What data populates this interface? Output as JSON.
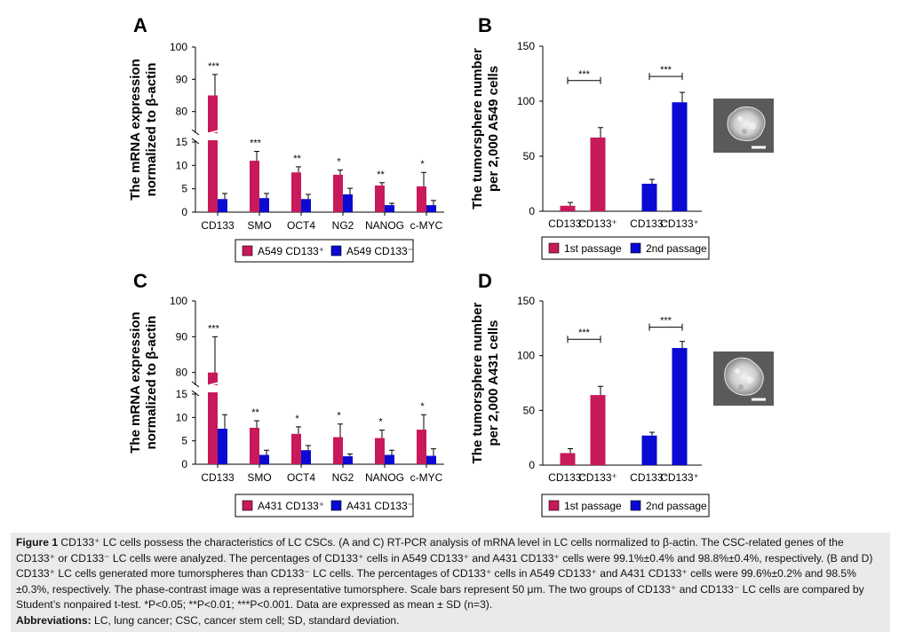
{
  "colors": {
    "crimson": "#c8195a",
    "blue": "#0a0ad2",
    "axis": "#000000",
    "caption_bg": "#eaeaea"
  },
  "panel_labels": [
    "A",
    "B",
    "C",
    "D"
  ],
  "chart_data": [
    {
      "id": "A",
      "type": "bar",
      "ylabel_lines": [
        "The mRNA expression",
        "normalized to β-actin"
      ],
      "categories": [
        "CD133",
        "SMO",
        "OCT4",
        "NG2",
        "NANOG",
        "c-MYC"
      ],
      "series": [
        {
          "name": "A549 CD133⁺",
          "color": "#c8195a",
          "values": [
            85,
            11,
            8.5,
            8,
            5.7,
            5.5
          ],
          "errors": [
            6.5,
            2,
            1.2,
            1,
            0.6,
            3
          ]
        },
        {
          "name": "A549 CD133⁻",
          "color": "#0a0ad2",
          "values": [
            2.8,
            3,
            2.8,
            3.8,
            1.5,
            1.5
          ],
          "errors": [
            1.2,
            1,
            1,
            1.3,
            0.4,
            1
          ]
        }
      ],
      "significance": [
        "***",
        "***",
        "**",
        "*",
        "**",
        "*"
      ],
      "y_broken": true,
      "y_lower_range": [
        0,
        15
      ],
      "y_lower_ticks": [
        0,
        5,
        10,
        15
      ],
      "y_upper_range": [
        70,
        100
      ],
      "y_upper_ticks": [
        80,
        90,
        100
      ]
    },
    {
      "id": "B",
      "type": "bar",
      "ylabel_lines": [
        "The tumorsphere number",
        "per 2,000 A549 cells"
      ],
      "x_tick_labels": [
        "CD133⁻",
        "CD133⁺",
        "CD133⁻",
        "CD133⁺"
      ],
      "ylim": [
        0,
        150
      ],
      "yticks": [
        0,
        50,
        100,
        150
      ],
      "series": [
        {
          "name": "1st passage",
          "color": "#c8195a",
          "values": [
            5,
            67
          ],
          "errors": [
            3,
            9
          ]
        },
        {
          "name": "2nd passage",
          "color": "#0a0ad2",
          "values": [
            25,
            99
          ],
          "errors": [
            4,
            9
          ]
        }
      ],
      "significance": [
        "***",
        "***"
      ]
    },
    {
      "id": "C",
      "type": "bar",
      "ylabel_lines": [
        "The mRNA expression",
        "normalized to β-actin"
      ],
      "categories": [
        "CD133",
        "SMO",
        "OCT4",
        "NG2",
        "NANOG",
        "c-MYC"
      ],
      "series": [
        {
          "name": "A431 CD133⁺",
          "color": "#c8195a",
          "values": [
            80,
            7.8,
            6.5,
            5.8,
            5.6,
            7.4
          ],
          "errors": [
            10,
            1.5,
            1.5,
            2.8,
            1.7,
            3.2
          ]
        },
        {
          "name": "A431 CD133⁻",
          "color": "#0a0ad2",
          "values": [
            7.6,
            2,
            3,
            1.7,
            2,
            1.8
          ],
          "errors": [
            3,
            1,
            1,
            0.5,
            1,
            1.5
          ]
        }
      ],
      "significance": [
        "***",
        "**",
        "*",
        "*",
        "*",
        "*"
      ],
      "y_broken": true,
      "y_lower_range": [
        0,
        15
      ],
      "y_lower_ticks": [
        0,
        5,
        10,
        15
      ],
      "y_upper_range": [
        70,
        100
      ],
      "y_upper_ticks": [
        80,
        90,
        100
      ]
    },
    {
      "id": "D",
      "type": "bar",
      "ylabel_lines": [
        "The tumorsphere number",
        "per 2,000 A431 cells"
      ],
      "x_tick_labels": [
        "CD133⁻",
        "CD133⁺",
        "CD133⁻",
        "CD133⁺"
      ],
      "ylim": [
        0,
        150
      ],
      "yticks": [
        0,
        50,
        100,
        150
      ],
      "series": [
        {
          "name": "1st passage",
          "color": "#c8195a",
          "values": [
            11,
            64
          ],
          "errors": [
            4,
            8
          ]
        },
        {
          "name": "2nd passage",
          "color": "#0a0ad2",
          "values": [
            27,
            107
          ],
          "errors": [
            3,
            6
          ]
        }
      ],
      "significance": [
        "***",
        "***"
      ]
    }
  ],
  "caption": {
    "figure_label": "Figure 1",
    "text": " CD133⁺ LC cells possess the characteristics of LC CSCs. (A and C) RT-PCR analysis of mRNA level in LC cells normalized to β-actin. The CSC-related genes of the CD133⁺ or CD133⁻ LC cells were analyzed. The percentages of CD133⁺ cells in A549 CD133⁺ and A431 CD133⁺ cells were 99.1%±0.4% and 98.8%±0.4%, respectively. (B and D) CD133⁺ LC cells generated more tumorspheres than CD133⁻ LC cells. The percentages of CD133⁺ cells in A549 CD133⁺ and A431 CD133⁺ cells were 99.6%±0.2% and 98.5%±0.3%, respectively. The phase-contrast image was a representative tumorsphere. Scale bars represent 50 μm. The two groups of CD133⁺ and CD133⁻ LC cells are compared by Student’s nonpaired t-test. *P<0.05; **P<0.01; ***P<0.001. Data are expressed as mean ± SD (n=3).",
    "abbrev_label": "Abbreviations:",
    "abbrev_text": " LC, lung cancer; CSC, cancer stem cell; SD, standard deviation."
  }
}
